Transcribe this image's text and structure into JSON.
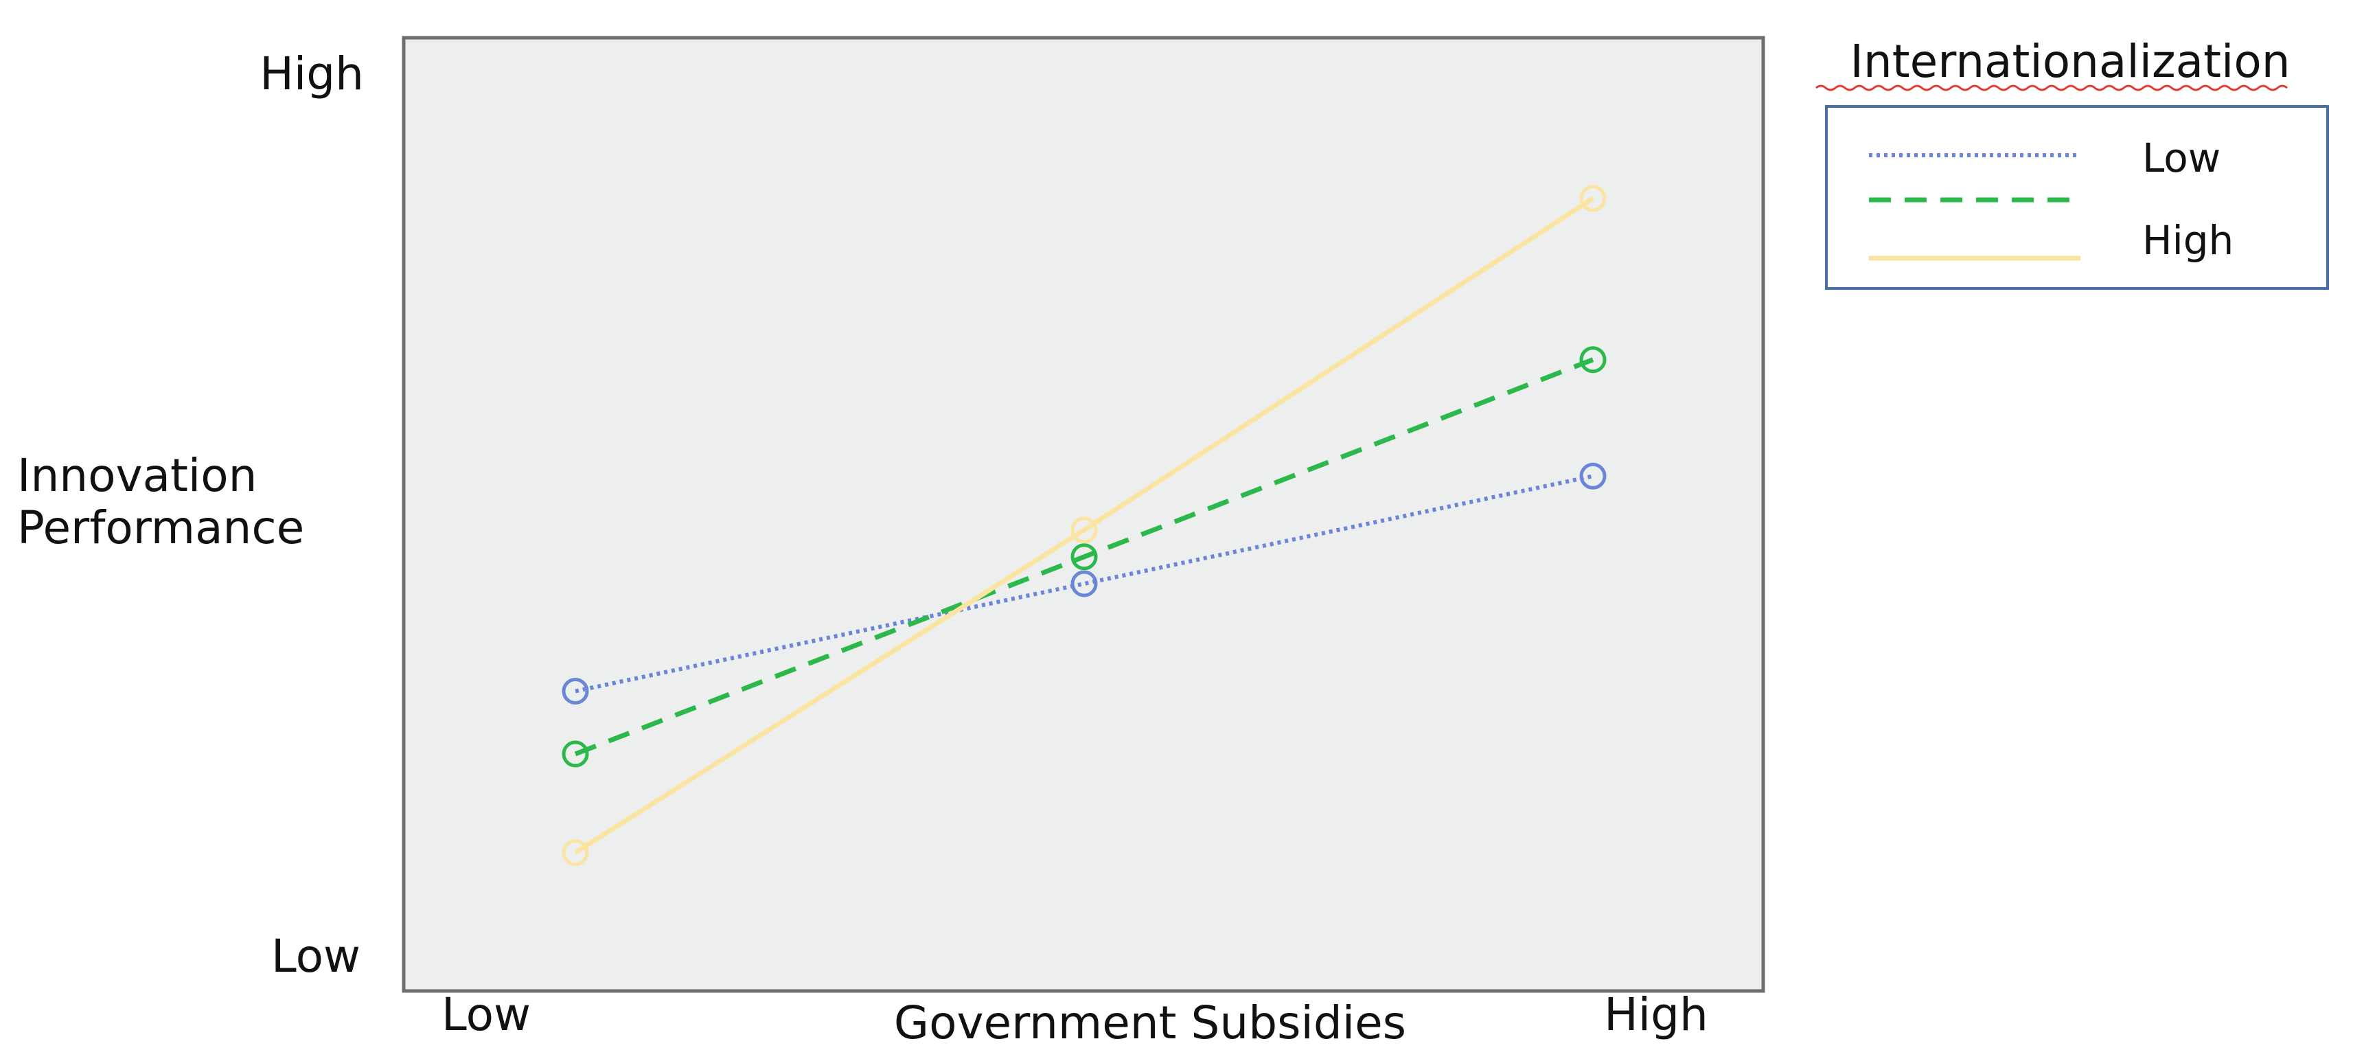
{
  "chart_data": {
    "type": "line",
    "ylabel": "Innovation Performance",
    "yticks": [
      "Low",
      "High"
    ],
    "xlabel": "Government Subsidies",
    "xticks": [
      "Low",
      "High"
    ],
    "x": [
      0,
      0.5,
      1
    ],
    "ylim": [
      0,
      1
    ],
    "grid": false,
    "plot_background": "#edefee",
    "legend": {
      "title": "Internationalization",
      "placement": "right",
      "entries": [
        "Low",
        "",
        "High"
      ]
    },
    "series": [
      {
        "name": "Low",
        "style": "dotted",
        "color": "#6b86d6",
        "values": [
          0.29,
          0.41,
          0.53
        ]
      },
      {
        "name": "",
        "style": "dashed",
        "color": "#2db84b",
        "values": [
          0.22,
          0.44,
          0.66
        ]
      },
      {
        "name": "High",
        "style": "solid",
        "color": "#fbe3a1",
        "values": [
          0.11,
          0.47,
          0.84
        ]
      }
    ]
  }
}
